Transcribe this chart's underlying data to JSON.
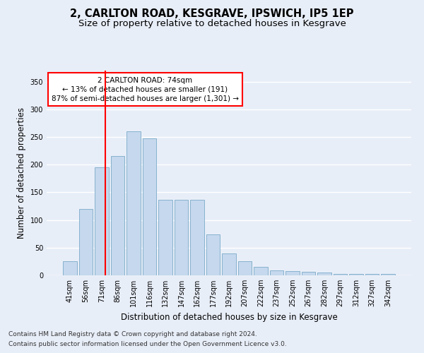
{
  "title_line1": "2, CARLTON ROAD, KESGRAVE, IPSWICH, IP5 1EP",
  "title_line2": "Size of property relative to detached houses in Kesgrave",
  "xlabel": "Distribution of detached houses by size in Kesgrave",
  "ylabel": "Number of detached properties",
  "categories": [
    "41sqm",
    "56sqm",
    "71sqm",
    "86sqm",
    "101sqm",
    "116sqm",
    "132sqm",
    "147sqm",
    "162sqm",
    "177sqm",
    "192sqm",
    "207sqm",
    "222sqm",
    "237sqm",
    "252sqm",
    "267sqm",
    "282sqm",
    "297sqm",
    "312sqm",
    "327sqm",
    "342sqm"
  ],
  "values": [
    25,
    120,
    195,
    215,
    260,
    247,
    137,
    136,
    136,
    74,
    40,
    25,
    15,
    9,
    8,
    7,
    5,
    3,
    3,
    3,
    2
  ],
  "bar_color": "#c5d8ed",
  "bar_edge_color": "#7aaac8",
  "vline_x": 2.2,
  "vline_color": "red",
  "annotation_text": "2 CARLTON ROAD: 74sqm\n← 13% of detached houses are smaller (191)\n87% of semi-detached houses are larger (1,301) →",
  "annotation_box_color": "white",
  "annotation_box_edge": "red",
  "ylim": [
    0,
    370
  ],
  "yticks": [
    0,
    50,
    100,
    150,
    200,
    250,
    300,
    350
  ],
  "footnote_line1": "Contains HM Land Registry data © Crown copyright and database right 2024.",
  "footnote_line2": "Contains public sector information licensed under the Open Government Licence v3.0.",
  "bg_color": "#e8eef8",
  "plot_bg_color": "#e8eef8",
  "grid_color": "white",
  "title_fontsize": 10.5,
  "subtitle_fontsize": 9.5,
  "axis_label_fontsize": 8.5,
  "tick_fontsize": 7,
  "footnote_fontsize": 6.5,
  "annotation_fontsize": 7.5
}
